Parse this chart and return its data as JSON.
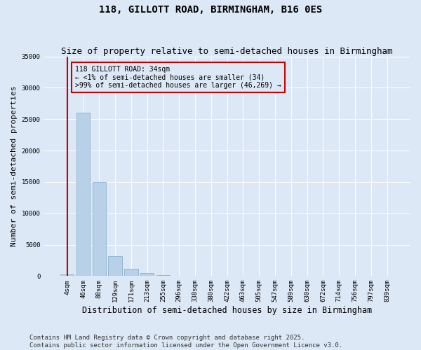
{
  "title": "118, GILLOTT ROAD, BIRMINGHAM, B16 0ES",
  "subtitle": "Size of property relative to semi-detached houses in Birmingham",
  "xlabel": "Distribution of semi-detached houses by size in Birmingham",
  "ylabel": "Number of semi-detached properties",
  "categories": [
    "4sqm",
    "46sqm",
    "88sqm",
    "129sqm",
    "171sqm",
    "213sqm",
    "255sqm",
    "296sqm",
    "338sqm",
    "380sqm",
    "422sqm",
    "463sqm",
    "505sqm",
    "547sqm",
    "589sqm",
    "630sqm",
    "672sqm",
    "714sqm",
    "756sqm",
    "797sqm",
    "839sqm"
  ],
  "values": [
    300,
    26000,
    15000,
    3200,
    1200,
    480,
    200,
    50,
    0,
    0,
    0,
    0,
    0,
    0,
    0,
    0,
    0,
    0,
    0,
    0,
    0
  ],
  "bar_color": "#b8d0e8",
  "bar_edge_color": "#7aaac8",
  "vline_color": "#cc0000",
  "vline_x": 0,
  "annotation_text": "118 GILLOTT ROAD: 34sqm\n← <1% of semi-detached houses are smaller (34)\n>99% of semi-detached houses are larger (46,269) →",
  "annotation_box_color": "#cc0000",
  "background_color": "#dce8f5",
  "ylim": [
    0,
    35000
  ],
  "yticks": [
    0,
    5000,
    10000,
    15000,
    20000,
    25000,
    30000,
    35000
  ],
  "footer": "Contains HM Land Registry data © Crown copyright and database right 2025.\nContains public sector information licensed under the Open Government Licence v3.0.",
  "title_fontsize": 10,
  "subtitle_fontsize": 9,
  "tick_fontsize": 6.5,
  "ylabel_fontsize": 8,
  "xlabel_fontsize": 8.5,
  "footer_fontsize": 6.5
}
